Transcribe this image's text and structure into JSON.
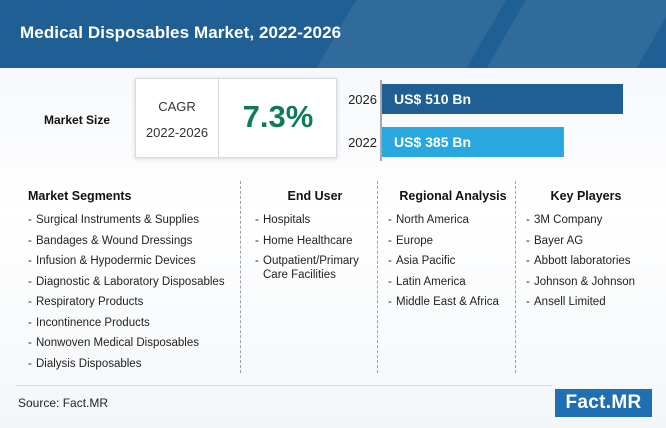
{
  "title": "Medical Disposables Market, 2022-2026",
  "market_size_label": "Market Size",
  "cagr": {
    "label": "CAGR",
    "period": "2022-2026",
    "value": "7.3%"
  },
  "colors": {
    "header_bg": "#1f5f93",
    "bar_2026": "#1f5f93",
    "bar_2022": "#29a8e0",
    "cagr_value": "#0e7c5a"
  },
  "chart_data": {
    "type": "bar",
    "orientation": "horizontal",
    "categories": [
      "2026",
      "2022"
    ],
    "values": [
      510,
      385
    ],
    "value_labels": [
      "US$ 510 Bn",
      "US$ 385 Bn"
    ],
    "title": "",
    "xlabel": "",
    "ylabel": "",
    "grid": false
  },
  "columns": [
    {
      "heading": "Market Segments",
      "items": [
        "Surgical Instruments & Supplies",
        "Bandages & Wound Dressings",
        "Infusion & Hypodermic Devices",
        "Diagnostic & Laboratory Disposables",
        "Respiratory Products",
        "Incontinence Products",
        "Nonwoven Medical Disposables",
        "Dialysis Disposables"
      ]
    },
    {
      "heading": "End User",
      "items": [
        "Hospitals",
        "Home Healthcare",
        "Outpatient/Primary Care Facilities"
      ]
    },
    {
      "heading": "Regional Analysis",
      "items": [
        "North America",
        "Europe",
        "Asia Pacific",
        "Latin America",
        "Middle East & Africa"
      ]
    },
    {
      "heading": "Key Players",
      "items": [
        "3M Company",
        "Bayer AG",
        "Abbott laboratories",
        "Johnson & Johnson",
        "Ansell Limited"
      ]
    }
  ],
  "source": "Source: Fact.MR",
  "logo": "Fact.MR"
}
